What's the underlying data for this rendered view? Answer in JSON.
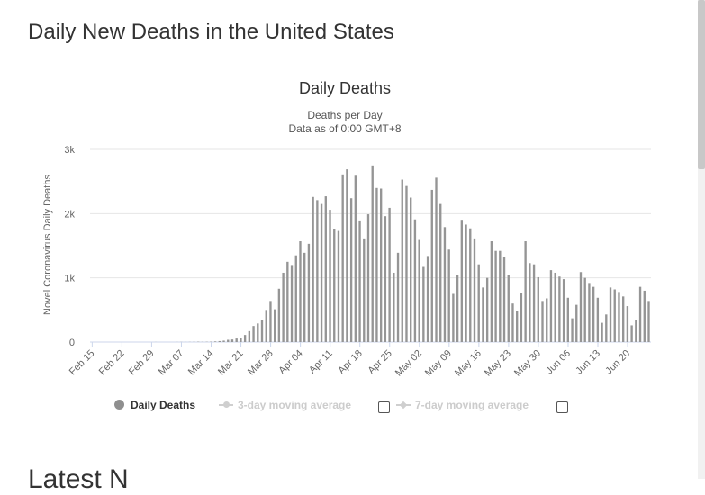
{
  "page": {
    "title": "Daily New Deaths in the United States",
    "next_heading": "Latest N"
  },
  "colors": {
    "bar": "#959595",
    "grid": "#e6e6e6",
    "axis_text": "#666666",
    "legend_inactive": "#cccccc"
  },
  "chart_data": {
    "type": "bar",
    "title": "Daily Deaths",
    "subtitle_lines": [
      "Deaths per Day",
      "Data as of 0:00 GMT+8"
    ],
    "ylabel": "Novel Coronavirus Daily Deaths",
    "xlabel": "",
    "ylim": [
      0,
      3000
    ],
    "yticks": [
      0,
      1000,
      2000,
      3000
    ],
    "ytick_labels": [
      "0",
      "1k",
      "2k",
      "3k"
    ],
    "grid": true,
    "categories_note": "daily from Feb 15 to Jun 24",
    "xtick_labels": [
      "Feb 15",
      "Feb 22",
      "Feb 29",
      "Mar 07",
      "Mar 14",
      "Mar 21",
      "Mar 28",
      "Apr 04",
      "Apr 11",
      "Apr 18",
      "Apr 25",
      "May 02",
      "May 09",
      "May 16",
      "May 23",
      "May 30",
      "Jun 06",
      "Jun 13",
      "Jun 20"
    ],
    "series": [
      {
        "name": "Daily Deaths",
        "values": [
          0,
          0,
          0,
          0,
          0,
          0,
          0,
          0,
          0,
          0,
          0,
          0,
          0,
          0,
          0,
          1,
          0,
          0,
          0,
          0,
          1,
          2,
          1,
          2,
          3,
          5,
          3,
          4,
          6,
          10,
          15,
          22,
          35,
          40,
          55,
          60,
          110,
          170,
          250,
          290,
          340,
          500,
          640,
          510,
          830,
          1080,
          1250,
          1200,
          1350,
          1570,
          1390,
          1530,
          2260,
          2210,
          2150,
          2270,
          2060,
          1760,
          1730,
          2610,
          2690,
          2240,
          2590,
          1880,
          1600,
          1990,
          2750,
          2400,
          2390,
          1960,
          2090,
          1080,
          1390,
          2530,
          2430,
          2250,
          1910,
          1590,
          1170,
          1340,
          2370,
          2560,
          2150,
          1790,
          1440,
          750,
          1050,
          1890,
          1830,
          1770,
          1600,
          1210,
          850,
          1000,
          1570,
          1420,
          1420,
          1320,
          1050,
          600,
          490,
          760,
          1570,
          1230,
          1210,
          1010,
          640,
          680,
          1120,
          1080,
          1020,
          980,
          690,
          370,
          580,
          1090,
          1000,
          920,
          860,
          690,
          300,
          430,
          850,
          820,
          780,
          710,
          560,
          260,
          350,
          860,
          800,
          640
        ]
      },
      {
        "name": "3-day moving average",
        "enabled": false
      },
      {
        "name": "7-day moving average",
        "enabled": false
      }
    ],
    "legend": {
      "position": "bottom",
      "items": [
        "Daily Deaths",
        "3-day moving average",
        "7-day moving average"
      ]
    }
  }
}
